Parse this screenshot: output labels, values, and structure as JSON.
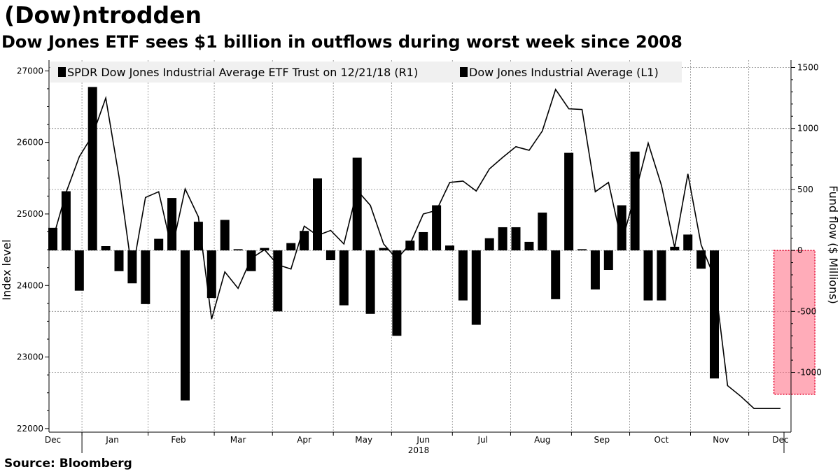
{
  "header": {
    "title": "(Dow)ntrodden",
    "subtitle": "Dow Jones ETF sees $1 billion in outflows during worst week since 2008"
  },
  "footer": {
    "source": "Source:  Bloomberg"
  },
  "chart_data": {
    "type": "bar+line",
    "ylabel_left": "Index level",
    "ylabel_right": "Fund flow ($ Millions)",
    "ylim_left": [
      21950,
      27150
    ],
    "ylim_right": [
      -1490,
      1560
    ],
    "yticks_left": [
      22000,
      23000,
      24000,
      25000,
      26000,
      27000
    ],
    "yticks_right": [
      -1000,
      -500,
      0,
      500,
      1000,
      1500
    ],
    "month_labels": [
      "Dec",
      "Jan",
      "Feb",
      "Mar",
      "Apr",
      "May",
      "Jun",
      "Jul",
      "Aug",
      "Sep",
      "Oct",
      "Nov",
      "Dec"
    ],
    "month_positions": [
      0,
      4.5,
      9.5,
      14,
      19,
      23.5,
      28,
      32.5,
      37,
      41.5,
      46,
      50.5,
      55
    ],
    "year_label": "2018",
    "legend_placement": "top-left",
    "highlight": {
      "start_week": 54.5,
      "end_week": 57.6,
      "y_top": 0,
      "y_bottom": -1180,
      "color": "#ff5a73"
    },
    "series": [
      {
        "name": "SPDR Dow Jones Industrial Average ETF Trust  on 12/21/18 (R1)",
        "kind": "bar",
        "axis": "right",
        "weeks": [
          0,
          1,
          2,
          3,
          4,
          5,
          6,
          7,
          8,
          9,
          10,
          11,
          12,
          13,
          14,
          15,
          16,
          17,
          18,
          19,
          20,
          21,
          22,
          23,
          24,
          25,
          26,
          27,
          28,
          29,
          30,
          31,
          32,
          33,
          34,
          35,
          36,
          37,
          38,
          39,
          40,
          41,
          42,
          43,
          44,
          45,
          46,
          47,
          48,
          49,
          50,
          51,
          52,
          53,
          54,
          55
        ],
        "values": [
          185,
          485,
          -330,
          1340,
          35,
          -170,
          -270,
          -440,
          95,
          430,
          -1230,
          235,
          -390,
          250,
          10,
          -170,
          20,
          -500,
          60,
          160,
          590,
          -80,
          -450,
          760,
          -520,
          20,
          -700,
          80,
          150,
          370,
          40,
          -410,
          -610,
          100,
          190,
          190,
          70,
          310,
          -400,
          800,
          10,
          -320,
          -160,
          370,
          810,
          -410,
          -410,
          30,
          130,
          -150,
          -1050,
          0,
          0,
          0,
          0,
          0
        ]
      },
      {
        "name": "Dow Jones Industrial Average  (L1)",
        "kind": "line",
        "axis": "left",
        "weeks": [
          0,
          1,
          2,
          3,
          4,
          5,
          6,
          7,
          8,
          9,
          10,
          11,
          12,
          13,
          14,
          15,
          16,
          17,
          18,
          19,
          20,
          21,
          22,
          23,
          24,
          25,
          26,
          27,
          28,
          29,
          30,
          31,
          32,
          33,
          34,
          35,
          36,
          37,
          38,
          39,
          40,
          41,
          42,
          43,
          44,
          45,
          46,
          47,
          48,
          49,
          50,
          51,
          52,
          53,
          54,
          55
        ],
        "values": [
          24650,
          25300,
          25800,
          26100,
          26620,
          25520,
          24180,
          25230,
          25310,
          24500,
          25350,
          24960,
          23530,
          24190,
          23960,
          24380,
          24500,
          24290,
          24230,
          24830,
          24700,
          24770,
          24580,
          25330,
          25120,
          24580,
          24370,
          24580,
          25000,
          25050,
          25440,
          25460,
          25320,
          25630,
          25790,
          25940,
          25890,
          26160,
          26740,
          26470,
          26460,
          25310,
          25440,
          24600,
          25270,
          25990,
          25400,
          24530,
          25560,
          24570,
          24110,
          22600,
          22450,
          22280,
          22280,
          22280
        ]
      }
    ]
  }
}
